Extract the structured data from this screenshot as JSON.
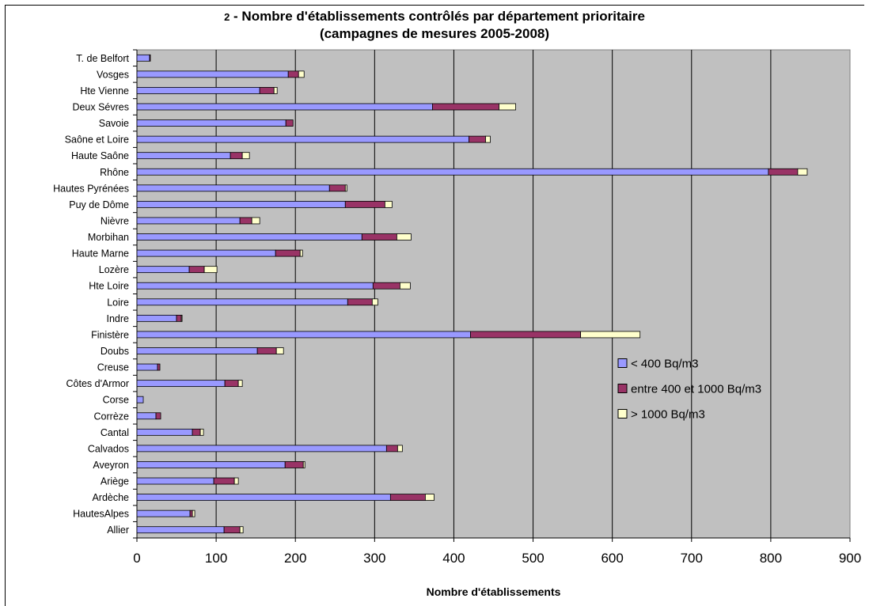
{
  "chart_data": {
    "type": "bar",
    "orientation": "horizontal",
    "stacked": true,
    "title_number": "2",
    "title_rest": " - Nombre d'établissements contrôlés par département prioritaire",
    "subtitle": "(campagnes de mesures 2005-2008)",
    "xlabel": "Nombre d'établissements",
    "ylabel": "",
    "xlim": [
      0,
      900
    ],
    "xticks": [
      0,
      100,
      200,
      300,
      400,
      500,
      600,
      700,
      800,
      900
    ],
    "grid": true,
    "plot_background": "#c0c0c0",
    "legend_position": "right",
    "categories": [
      "T. de Belfort",
      "Vosges",
      "Hte Vienne",
      "Deux Sévres",
      "Savoie",
      "Saône et Loire",
      "Haute Saône",
      "Rhône",
      "Hautes Pyrénées",
      "Puy de Dôme",
      "Nièvre",
      "Morbihan",
      "Haute Marne",
      "Lozère",
      "Hte Loire",
      "Loire",
      "Indre",
      "Finistère",
      "Doubs",
      "Creuse",
      "Côtes d'Armor",
      "Corse",
      "Corrèze",
      "Cantal",
      "Calvados",
      "Aveyron",
      "Ariège",
      "Ardèche",
      "HautesAlpes",
      "Allier"
    ],
    "series": [
      {
        "name": "< 400 Bq/m3",
        "color": "#9999ff",
        "values": [
          16,
          191,
          155,
          373,
          188,
          419,
          118,
          797,
          243,
          263,
          130,
          284,
          175,
          66,
          298,
          266,
          50,
          421,
          152,
          26,
          111,
          8,
          24,
          70,
          315,
          187,
          97,
          320,
          67,
          110
        ]
      },
      {
        "name": "entre 400 et 1000 Bq/m3",
        "color": "#993366",
        "values": [
          1,
          13,
          18,
          84,
          9,
          21,
          15,
          37,
          20,
          50,
          15,
          44,
          31,
          19,
          34,
          31,
          6,
          139,
          24,
          3,
          17,
          0,
          6,
          10,
          14,
          23,
          26,
          44,
          3,
          20
        ]
      },
      {
        "name": "> 1000 Bq/m3",
        "color": "#ffffcc",
        "values": [
          0,
          7,
          4,
          21,
          0,
          6,
          9,
          12,
          2,
          9,
          10,
          18,
          3,
          16,
          13,
          7,
          1,
          75,
          9,
          0,
          5,
          0,
          0,
          4,
          6,
          2,
          5,
          11,
          3,
          4
        ]
      }
    ]
  }
}
